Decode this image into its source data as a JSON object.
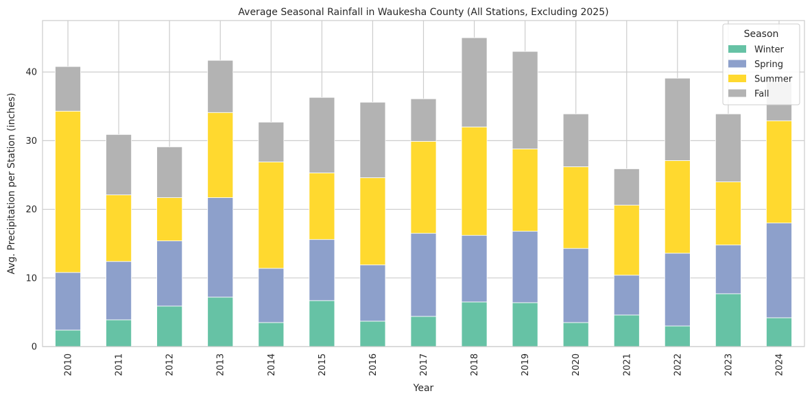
{
  "chart_data": {
    "type": "bar",
    "stacked": true,
    "title": "Average Seasonal Rainfall in Waukesha County (All Stations, Excluding 2025)",
    "xlabel": "Year",
    "ylabel": "Avg. Precipitation per Station (inches)",
    "ylim": [
      0,
      47.5
    ],
    "yticks": [
      0,
      10,
      20,
      30,
      40
    ],
    "grid": true,
    "legend": {
      "title": "Season",
      "placement": "top-right"
    },
    "categories": [
      "2010",
      "2011",
      "2012",
      "2013",
      "2014",
      "2015",
      "2016",
      "2017",
      "2018",
      "2019",
      "2020",
      "2021",
      "2022",
      "2023",
      "2024"
    ],
    "series": [
      {
        "name": "Winter",
        "color": "#66c2a5",
        "values": [
          2.4,
          3.9,
          5.9,
          7.2,
          3.5,
          6.7,
          3.7,
          4.4,
          6.5,
          6.4,
          3.5,
          4.6,
          3.0,
          7.7,
          4.2
        ]
      },
      {
        "name": "Spring",
        "color": "#8da0cb",
        "values": [
          8.4,
          8.5,
          9.5,
          14.5,
          7.9,
          8.9,
          8.2,
          12.1,
          9.7,
          10.4,
          10.8,
          5.8,
          10.6,
          7.1,
          13.8
        ]
      },
      {
        "name": "Summer",
        "color": "#ffd92f",
        "values": [
          23.5,
          9.7,
          6.3,
          12.4,
          15.5,
          9.7,
          12.7,
          13.4,
          15.8,
          12.0,
          11.9,
          10.2,
          13.5,
          9.2,
          14.9
        ]
      },
      {
        "name": "Fall",
        "color": "#b3b3b3",
        "values": [
          6.5,
          8.8,
          7.4,
          7.6,
          5.8,
          11.0,
          11.0,
          6.2,
          13.0,
          14.2,
          7.7,
          5.3,
          12.0,
          9.9,
          5.6
        ]
      }
    ]
  }
}
